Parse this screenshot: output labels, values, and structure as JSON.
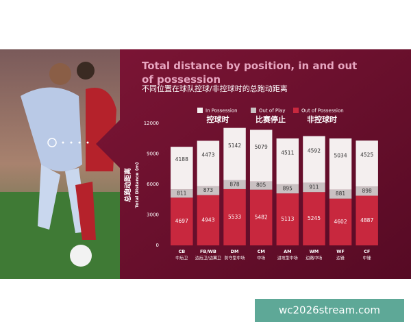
{
  "chart_data": {
    "type": "stacked_bar",
    "title": "Total distance by position, in and out of possession",
    "subtitle": "不同位置在球队控球/非控球时的总跑动距离",
    "y_label_zh": "总跑动距离",
    "y_label": "Total Distance (m)",
    "phase_labels": [
      "控球时",
      "比赛停止",
      "非控球时"
    ],
    "categories": [
      "CB",
      "FB/WB",
      "DM",
      "CM",
      "AM",
      "WM",
      "WF",
      "CF"
    ],
    "categories_zh": [
      "中后卫",
      "边后卫/边翼卫",
      "防守型中场",
      "中场",
      "进攻型中场",
      "边路中场",
      "边锋",
      "中锋"
    ],
    "series": [
      {
        "name": "In Possession",
        "color": "#f4efef",
        "values": [
          4188,
          4473,
          5142,
          5079,
          4511,
          4592,
          5034,
          4525
        ]
      },
      {
        "name": "Out of Play",
        "color": "#c9c1c2",
        "values": [
          811,
          873,
          878,
          805,
          895,
          911,
          881,
          898
        ]
      },
      {
        "name": "Out of Possession",
        "color": "#c8283e",
        "values": [
          4697,
          4943,
          5533,
          5482,
          5113,
          5245,
          4602,
          4887
        ]
      }
    ],
    "ylim": [
      0,
      12000
    ],
    "yticks": [
      0,
      3000,
      6000,
      9000,
      12000
    ],
    "grid": false
  },
  "watermark": "wc2026stream.com"
}
